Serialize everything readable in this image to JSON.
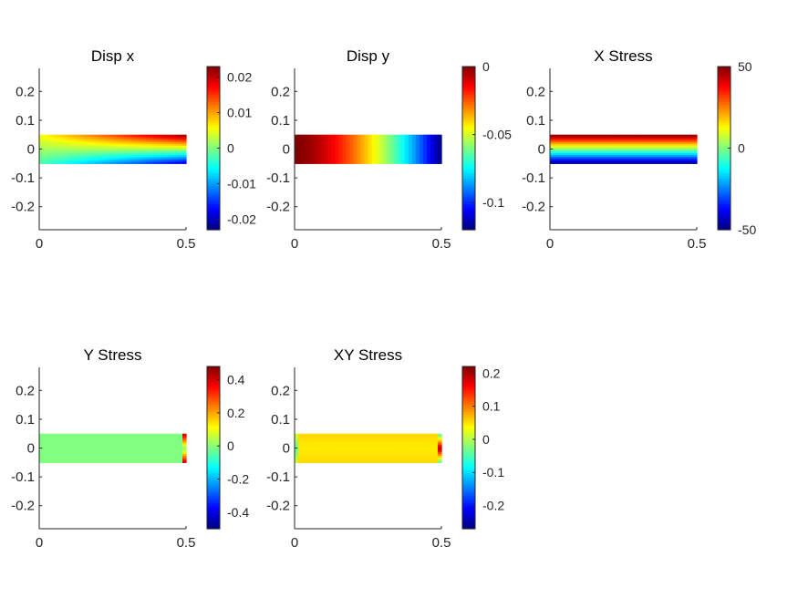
{
  "chart_data": [
    {
      "type": "heatmap",
      "title": "Disp x",
      "xlim": [
        0,
        0.5
      ],
      "ylim": [
        -0.28,
        0.28
      ],
      "xticks": [
        0,
        0.5
      ],
      "xtick_labels": [
        "0",
        "0.5"
      ],
      "yticks": [
        0.2,
        0.1,
        0,
        -0.1,
        -0.2
      ],
      "ytick_labels": [
        "0.2",
        "0.1",
        "0",
        "-0.1",
        "-0.2"
      ],
      "domain": {
        "x": [
          0,
          0.5
        ],
        "y": [
          -0.05,
          0.05
        ]
      },
      "field": "linear_in_y_growing_with_x",
      "clim": [
        -0.023,
        0.023
      ],
      "colorbar_ticks": [
        0.02,
        0.01,
        0,
        -0.01,
        -0.02
      ],
      "colorbar_labels": [
        "0.02",
        "0.01",
        "0",
        "-0.01",
        "-0.02"
      ],
      "colormap": "jet"
    },
    {
      "type": "heatmap",
      "title": "Disp y",
      "xlim": [
        0,
        0.5
      ],
      "ylim": [
        -0.28,
        0.28
      ],
      "xticks": [
        0,
        0.5
      ],
      "xtick_labels": [
        "0",
        "0.5"
      ],
      "yticks": [
        0.2,
        0.1,
        0,
        -0.1,
        -0.2
      ],
      "ytick_labels": [
        "0.2",
        "0.1",
        "0",
        "-0.1",
        "-0.2"
      ],
      "domain": {
        "x": [
          0,
          0.5
        ],
        "y": [
          -0.05,
          0.05
        ]
      },
      "field": "decreasing_with_x",
      "clim": [
        -0.12,
        0
      ],
      "colorbar_ticks": [
        0,
        -0.05,
        -0.1
      ],
      "colorbar_labels": [
        "0",
        "-0.05",
        "-0.1"
      ],
      "colormap": "jet"
    },
    {
      "type": "heatmap",
      "title": "X Stress",
      "xlim": [
        0,
        0.5
      ],
      "ylim": [
        -0.28,
        0.28
      ],
      "xticks": [
        0,
        0.5
      ],
      "xtick_labels": [
        "0",
        "0.5"
      ],
      "yticks": [
        0.2,
        0.1,
        0,
        -0.1,
        -0.2
      ],
      "ytick_labels": [
        "0.2",
        "0.1",
        "0",
        "-0.1",
        "-0.2"
      ],
      "domain": {
        "x": [
          0,
          0.5
        ],
        "y": [
          -0.05,
          0.05
        ]
      },
      "field": "linear_in_y",
      "clim": [
        -50,
        50
      ],
      "colorbar_ticks": [
        50,
        0,
        -50
      ],
      "colorbar_labels": [
        "50",
        "0",
        "-50"
      ],
      "colormap": "jet"
    },
    {
      "type": "heatmap",
      "title": "Y Stress",
      "xlim": [
        0,
        0.5
      ],
      "ylim": [
        -0.28,
        0.28
      ],
      "xticks": [
        0,
        0.5
      ],
      "xtick_labels": [
        "0",
        "0.5"
      ],
      "yticks": [
        0.2,
        0.1,
        0,
        -0.1,
        -0.2
      ],
      "ytick_labels": [
        "0.2",
        "0.1",
        "0",
        "-0.1",
        "-0.2"
      ],
      "domain": {
        "x": [
          0,
          0.5
        ],
        "y": [
          -0.05,
          0.05
        ]
      },
      "field": "near_zero_with_edge_spikes",
      "clim": [
        -0.5,
        0.48
      ],
      "colorbar_ticks": [
        0.4,
        0.2,
        0,
        -0.2,
        -0.4
      ],
      "colorbar_labels": [
        "0.4",
        "0.2",
        "0",
        "-0.2",
        "-0.4"
      ],
      "colormap": "jet"
    },
    {
      "type": "heatmap",
      "title": "XY Stress",
      "xlim": [
        0,
        0.5
      ],
      "ylim": [
        -0.28,
        0.28
      ],
      "xticks": [
        0,
        0.5
      ],
      "xtick_labels": [
        "0",
        "0.5"
      ],
      "yticks": [
        0.2,
        0.1,
        0,
        -0.1,
        -0.2
      ],
      "ytick_labels": [
        "0.2",
        "0.1",
        "0",
        "-0.1",
        "-0.2"
      ],
      "domain": {
        "x": [
          0,
          0.5
        ],
        "y": [
          -0.05,
          0.05
        ]
      },
      "field": "slightly_positive_with_edge_spikes",
      "clim": [
        -0.27,
        0.22
      ],
      "colorbar_ticks": [
        0.2,
        0.1,
        0,
        -0.1,
        -0.2
      ],
      "colorbar_labels": [
        "0.2",
        "0.1",
        "0",
        "-0.1",
        "-0.2"
      ],
      "colormap": "jet"
    }
  ]
}
